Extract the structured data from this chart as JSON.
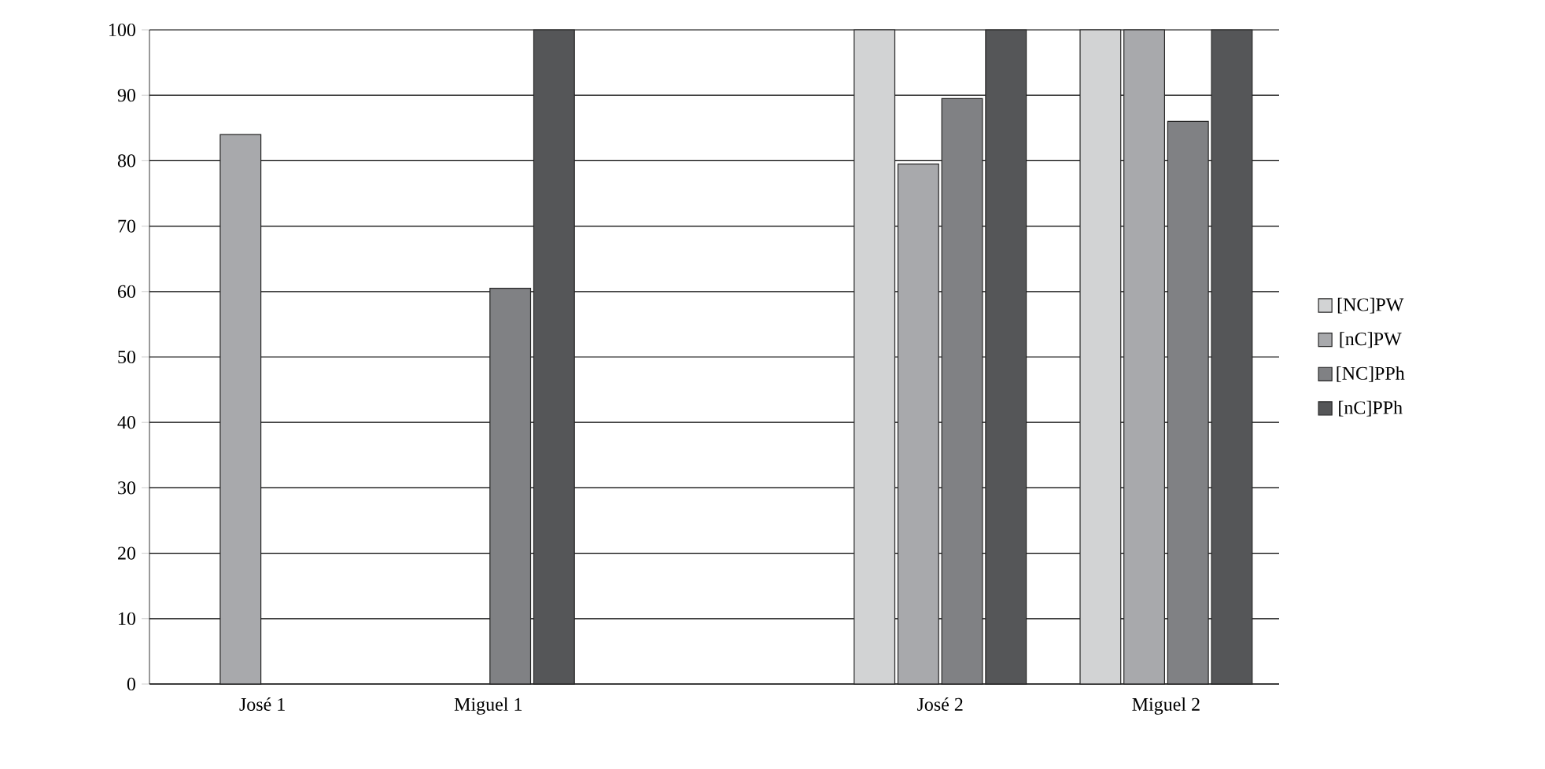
{
  "chart_data": {
    "type": "bar",
    "categories": [
      "José 1",
      "Miguel 1",
      null,
      "José 2",
      "Miguel 2"
    ],
    "series": [
      {
        "name": "[NC]PW",
        "color": "#d2d3d4",
        "values": [
          null,
          null,
          null,
          100,
          100
        ]
      },
      {
        "name": "[nC]PW",
        "color": "#a8a9ac",
        "values": [
          84,
          null,
          null,
          79.5,
          100
        ]
      },
      {
        "name": "[NC]PPh",
        "color": "#808184",
        "values": [
          null,
          60.5,
          null,
          89.5,
          86
        ]
      },
      {
        "name": "[nC]PPh",
        "color": "#555658",
        "values": [
          null,
          100,
          null,
          100,
          100
        ]
      }
    ],
    "ylim": [
      0,
      100
    ],
    "yticks": [
      0,
      10,
      20,
      30,
      40,
      50,
      60,
      70,
      80,
      90,
      100
    ],
    "grid": "y",
    "legend": "right"
  }
}
